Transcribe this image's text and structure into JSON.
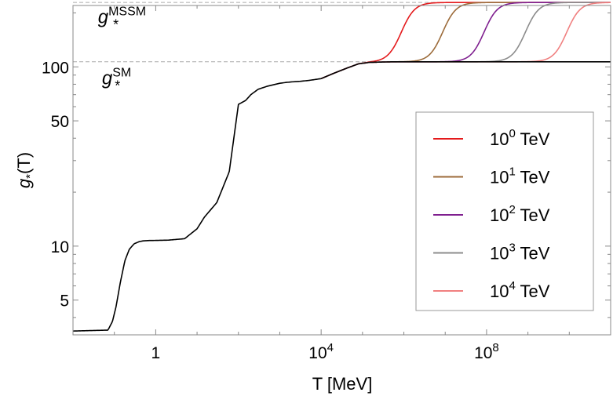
{
  "chart_data": {
    "type": "line",
    "title": "",
    "xlabel": "T [MeV]",
    "ylabel": "g*(T)",
    "ylabel_parts": {
      "base": "g",
      "sub": "*",
      "rest": "(T)"
    },
    "x_scale": "log",
    "y_scale": "log",
    "xlim": [
      0.01,
      100000000000.0
    ],
    "ylim": [
      3.2,
      220
    ],
    "x_ticks": [
      {
        "value": 1,
        "base": "1",
        "exp": ""
      },
      {
        "value": 10000,
        "base": "10",
        "exp": "4"
      },
      {
        "value": 100000000,
        "base": "10",
        "exp": "8"
      }
    ],
    "y_ticks": [
      {
        "value": 5,
        "label": "5"
      },
      {
        "value": 10,
        "label": "10"
      },
      {
        "value": 50,
        "label": "50"
      },
      {
        "value": 100,
        "label": "100"
      }
    ],
    "reference_lines": [
      {
        "y": 106.75,
        "style": "dashed",
        "color": "#aaaaaa"
      },
      {
        "y": 228.75,
        "style": "dashed",
        "color": "#aaaaaa"
      }
    ],
    "annotations": [
      {
        "base": "g",
        "sub": "*",
        "sup": "MSSM",
        "x": 0.04,
        "y": 175
      },
      {
        "base": "g",
        "sub": "*",
        "sup": "SM",
        "x": 0.05,
        "y": 80
      }
    ],
    "grid": false,
    "legend_position": "right",
    "sm_curve": {
      "color": "#000000",
      "x": [
        0.01,
        0.07,
        0.09,
        0.11,
        0.14,
        0.18,
        0.23,
        0.3,
        0.4,
        0.5,
        0.7,
        1,
        2,
        5,
        10,
        15,
        30,
        60,
        100,
        150,
        200,
        300,
        500,
        1000,
        1500,
        2000,
        3000,
        5000,
        10000,
        20000,
        40000,
        80000,
        150000,
        500000,
        100000000000.0
      ],
      "y": [
        3.36,
        3.4,
        3.8,
        4.6,
        6.3,
        8.3,
        9.6,
        10.3,
        10.6,
        10.7,
        10.75,
        10.76,
        10.8,
        11.0,
        12.5,
        14.5,
        17.5,
        26,
        61.75,
        65,
        70,
        75,
        78,
        81,
        82,
        82.5,
        83,
        84,
        86,
        92,
        98,
        104,
        106,
        106.7,
        106.75
      ]
    },
    "series": [
      {
        "name_base": "10",
        "name_exp": "0",
        "name_unit": "TeV",
        "color": "#e41a1c",
        "transition_T": 1000000
      },
      {
        "name_base": "10",
        "name_exp": "1",
        "name_unit": "TeV",
        "color": "#9c6b3a",
        "transition_T": 10000000
      },
      {
        "name_base": "10",
        "name_exp": "2",
        "name_unit": "TeV",
        "color": "#7f1f8f",
        "transition_T": 100000000
      },
      {
        "name_base": "10",
        "name_exp": "3",
        "name_unit": "TeV",
        "color": "#8c8c8c",
        "transition_T": 1000000000
      },
      {
        "name_base": "10",
        "name_exp": "4",
        "name_unit": "TeV",
        "color": "#f08080",
        "transition_T": 10000000000
      }
    ]
  }
}
